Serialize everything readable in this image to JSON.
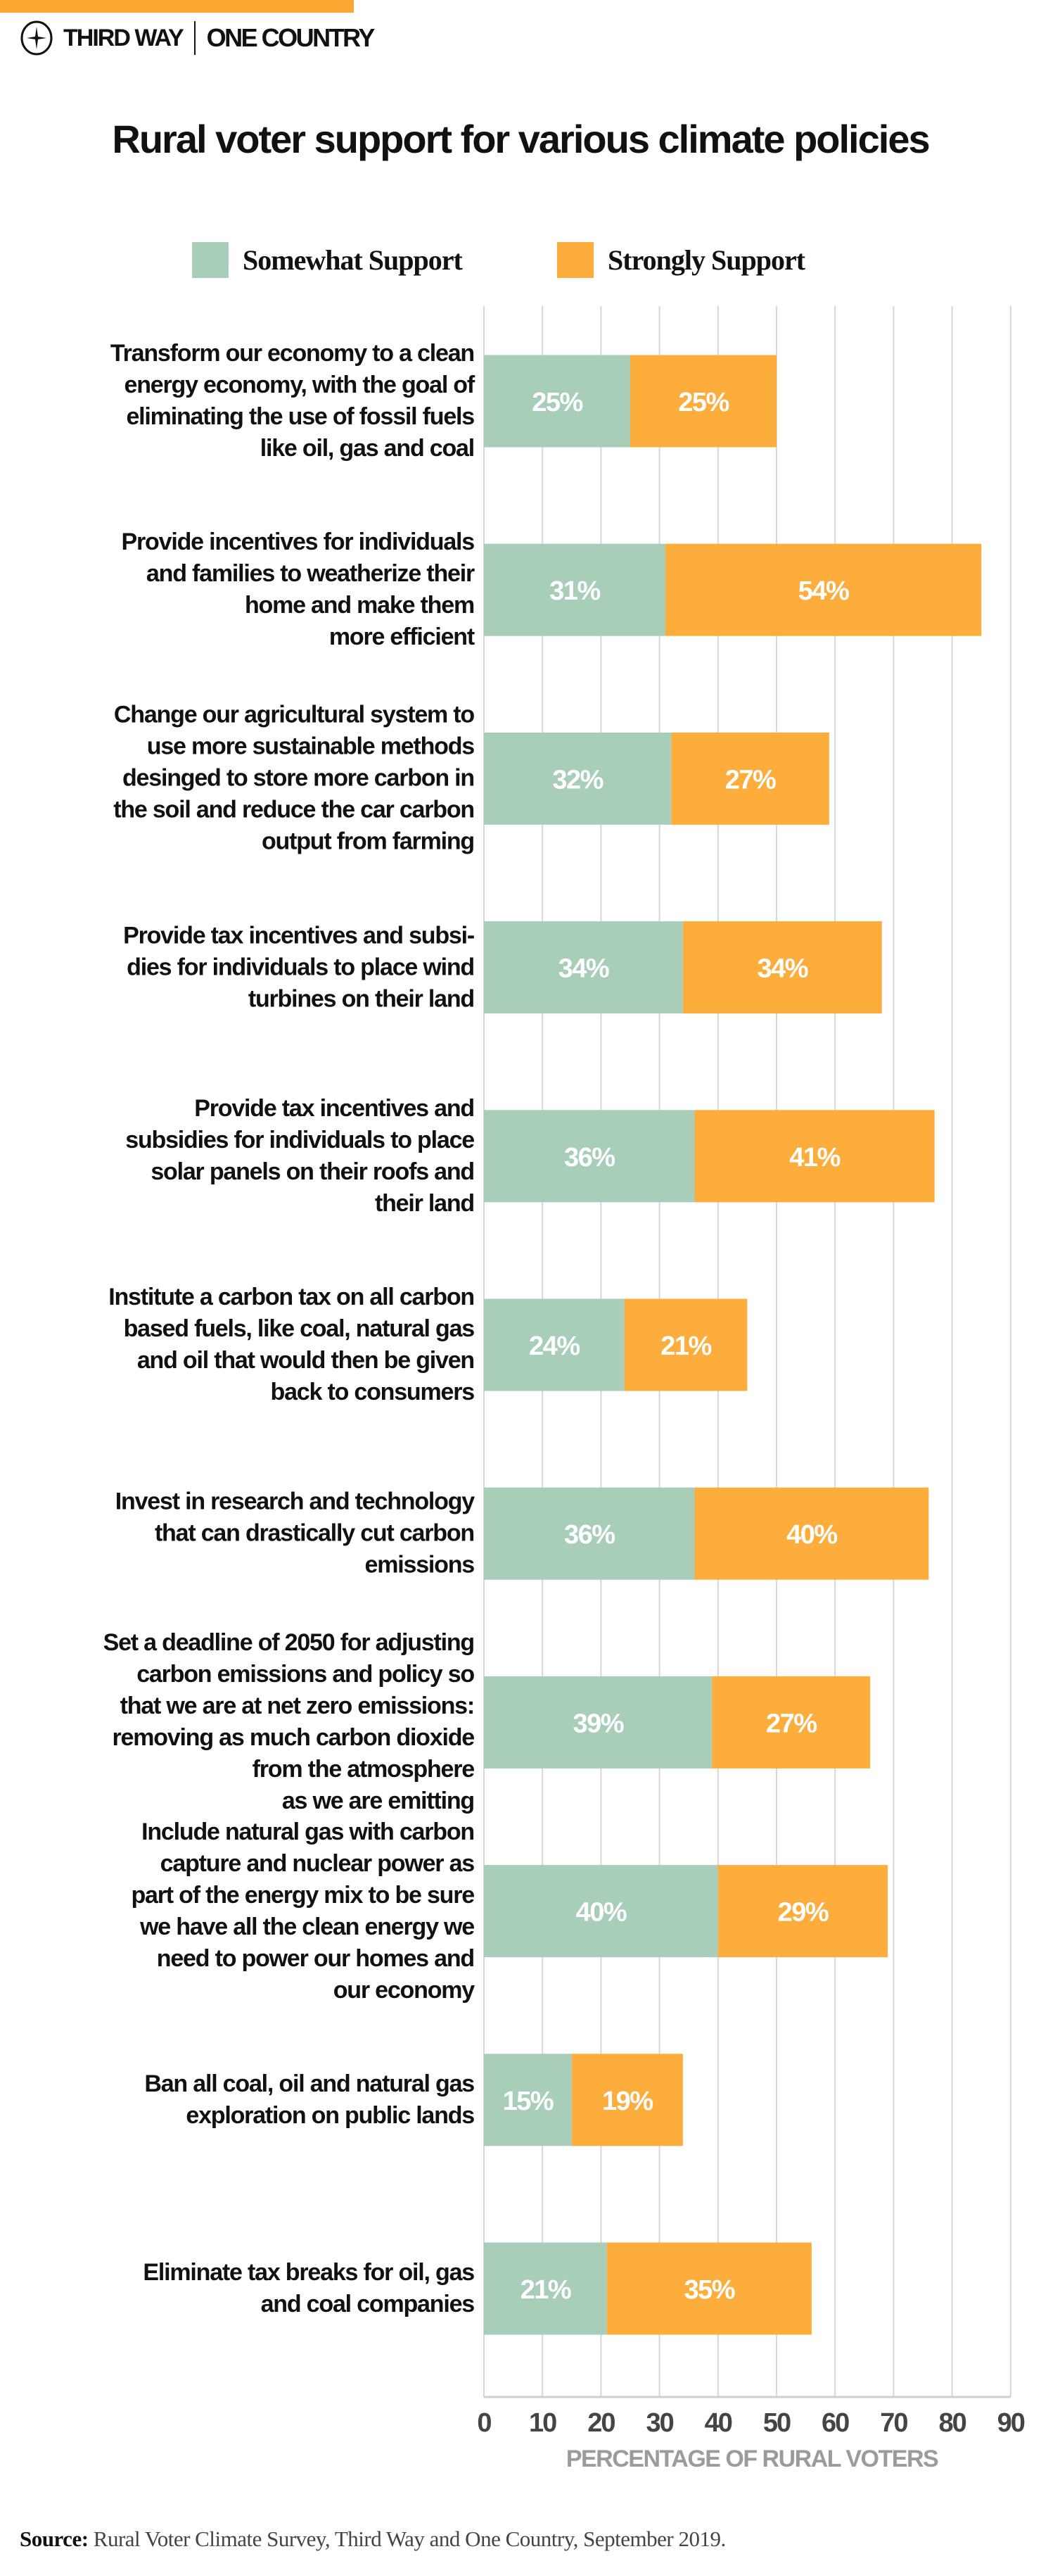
{
  "brand": {
    "left": "THIRD WAY",
    "right": "ONE COUNTRY",
    "accent": "#fca732"
  },
  "chart_data": {
    "type": "bar",
    "orientation": "horizontal",
    "stacked": true,
    "title": "Rural voter support for various climate policies",
    "xlabel": "PERCENTAGE OF RURAL VOTERS",
    "xlim": [
      0,
      90
    ],
    "xticks": [
      0,
      10,
      20,
      30,
      40,
      50,
      60,
      70,
      80,
      90
    ],
    "grid": true,
    "legend_position": "top",
    "categories": [
      "Transform our economy to a clean energy economy, with the goal of eliminating the use of fossil fuels like oil, gas and coal",
      "Provide incentives for individuals and families to weatherize their home and make them more efficient",
      "Change our agricultural system to use more sustainable methods desinged to store more carbon in the soil and reduce the car carbon output from farming",
      "Provide tax incentives and subsi-dies for individuals to place wind turbines on their land",
      "Provide tax incentives and subsidies for individuals to place solar panels on their roofs and their land",
      "Institute a carbon tax on all carbon based fuels, like coal, natural gas and oil that would then be given back to consumers",
      "Invest in research and technology that can drastically cut carbon emissions",
      "Set a deadline of 2050 for adjusting carbon emissions and policy so that we are at net zero emissions: removing as much carbon dioxide from the atmosphere as we are emitting",
      "Include natural gas with carbon capture and nuclear power as part of the energy mix to be sure we have all the clean energy we need to power our homes and our economy",
      "Ban all coal, oil and natural gas exploration on public lands",
      "Eliminate tax breaks for oil, gas and coal companies"
    ],
    "category_lines": [
      [
        "Transform our economy to a clean",
        "energy economy, with the goal of",
        "eliminating the use of fossil fuels",
        "like oil, gas and coal"
      ],
      [
        "Provide incentives for individuals",
        "and families to weatherize their",
        "home and make them",
        "more efficient"
      ],
      [
        "Change our agricultural system to",
        "use more sustainable methods",
        "desinged to store more carbon in",
        "the soil and reduce the car carbon",
        "output from farming"
      ],
      [
        "Provide tax incentives and subsi-",
        "dies for individuals to place wind",
        "turbines on their land"
      ],
      [
        "Provide tax incentives and",
        "subsidies for individuals to place",
        "solar panels on their roofs and",
        "their land"
      ],
      [
        "Institute a carbon tax on all carbon",
        "based fuels, like coal, natural gas",
        "and oil that would then be given",
        "back to consumers"
      ],
      [
        "Invest in research and technology",
        "that can drastically cut carbon",
        "emissions"
      ],
      [
        "Set a deadline of 2050 for adjusting",
        "carbon emissions and policy so",
        "that we are at net zero emissions:",
        "removing as much carbon dioxide",
        "from the atmosphere",
        "as we are emitting"
      ],
      [
        "Include natural gas with carbon",
        "capture and nuclear power as",
        "part of the energy mix to be sure",
        "we have all the clean energy we",
        "need to power our homes and",
        "our economy"
      ],
      [
        "Ban all coal, oil and natural gas",
        "exploration on public lands"
      ],
      [
        "Eliminate tax breaks for oil, gas",
        "and coal companies"
      ]
    ],
    "series": [
      {
        "name": "Somewhat Support",
        "color": "#a8cdb8",
        "values": [
          25,
          31,
          32,
          34,
          36,
          24,
          36,
          39,
          40,
          15,
          21
        ]
      },
      {
        "name": "Strongly Support",
        "color": "#fcad3c",
        "values": [
          25,
          54,
          27,
          34,
          41,
          21,
          40,
          27,
          29,
          19,
          35
        ]
      }
    ],
    "value_suffix": "%"
  },
  "source": {
    "label": "Source:",
    "text": "Rural Voter Climate Survey, Third Way and One Country, September 2019."
  }
}
